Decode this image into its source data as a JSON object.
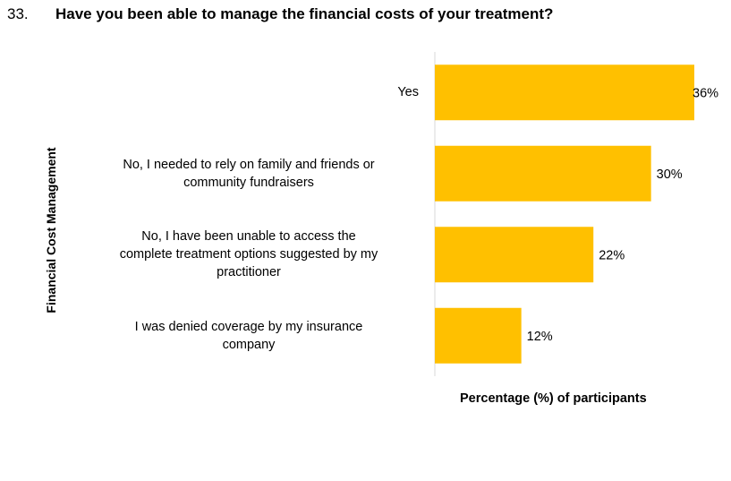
{
  "question": {
    "number": "33.",
    "title": "Have you been able to manage the financial costs of your treatment?"
  },
  "colors": {
    "bar": "#FFC000",
    "axis": "#D9D9D9"
  },
  "chart_data": {
    "type": "bar",
    "orientation": "horizontal",
    "title": "Have you been able to manage the financial costs of your treatment?",
    "xlabel": "Percentage (%) of participants",
    "ylabel": "Financial Cost Management",
    "xlim": [
      0,
      36
    ],
    "grid": false,
    "categories": [
      [
        "Yes"
      ],
      [
        "No, I needed to rely on family and friends or",
        "community fundraisers"
      ],
      [
        "No, I have been unable to access the",
        "complete treatment options suggested by my",
        "practitioner"
      ],
      [
        "I was denied coverage by my insurance",
        "company"
      ]
    ],
    "values": [
      36,
      30,
      22,
      12
    ],
    "data_labels": [
      "36%",
      "30%",
      "22%",
      "12%"
    ]
  }
}
